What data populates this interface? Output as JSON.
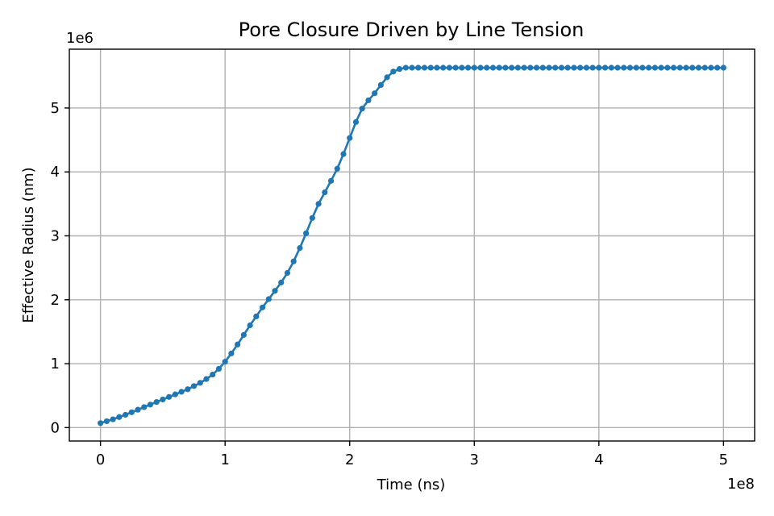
{
  "chart_data": {
    "type": "line",
    "title": "Pore Closure Driven by Line Tension",
    "xlabel": "Time (ns)",
    "ylabel": "Effective Radius (nm)",
    "x_offset_text": "1e8",
    "y_offset_text": "1e6",
    "x_scale_factor": 100000000,
    "y_scale_factor": 1000000,
    "xlim": [
      -25000000,
      525000000
    ],
    "ylim": [
      -210000,
      5920000
    ],
    "xticks": [
      0,
      100000000,
      200000000,
      300000000,
      400000000,
      500000000
    ],
    "xtick_labels": [
      "0",
      "1",
      "2",
      "3",
      "4",
      "5"
    ],
    "yticks": [
      0,
      1000000,
      2000000,
      3000000,
      4000000,
      5000000
    ],
    "ytick_labels": [
      "0",
      "1",
      "2",
      "3",
      "4",
      "5"
    ],
    "grid": true,
    "color": "#1f77b4",
    "series": [
      {
        "x": [
          0,
          5000000,
          10000000,
          15000000,
          20000000,
          25000000,
          30000000,
          35000000,
          40000000,
          45000000,
          50000000,
          55000000,
          60000000,
          65000000,
          70000000,
          75000000,
          80000000,
          85000000,
          90000000,
          95000000,
          100000000,
          105000000,
          110000000,
          115000000,
          120000000,
          125000000,
          130000000,
          135000000,
          140000000,
          145000000,
          150000000,
          155000000,
          160000000,
          165000000,
          170000000,
          175000000,
          180000000,
          185000000,
          190000000,
          195000000,
          200000000,
          205000000,
          210000000,
          215000000,
          220000000,
          225000000,
          230000000,
          235000000,
          240000000,
          245000000,
          250000000,
          255000000,
          260000000,
          265000000,
          270000000,
          275000000,
          280000000,
          285000000,
          290000000,
          295000000,
          300000000,
          305000000,
          310000000,
          315000000,
          320000000,
          325000000,
          330000000,
          335000000,
          340000000,
          345000000,
          350000000,
          355000000,
          360000000,
          365000000,
          370000000,
          375000000,
          380000000,
          385000000,
          390000000,
          395000000,
          400000000,
          405000000,
          410000000,
          415000000,
          420000000,
          425000000,
          430000000,
          435000000,
          440000000,
          445000000,
          450000000,
          455000000,
          460000000,
          465000000,
          470000000,
          475000000,
          480000000,
          485000000,
          490000000,
          495000000,
          500000000
        ],
        "y": [
          70000,
          100000,
          130000,
          165000,
          200000,
          240000,
          280000,
          320000,
          360000,
          400000,
          440000,
          480000,
          520000,
          560000,
          600000,
          650000,
          700000,
          760000,
          830000,
          920000,
          1030000,
          1160000,
          1300000,
          1450000,
          1600000,
          1740000,
          1880000,
          2010000,
          2140000,
          2270000,
          2420000,
          2600000,
          2810000,
          3040000,
          3280000,
          3500000,
          3680000,
          3860000,
          4050000,
          4280000,
          4530000,
          4780000,
          4990000,
          5120000,
          5230000,
          5360000,
          5480000,
          5570000,
          5610000,
          5630000,
          5630000,
          5630000,
          5630000,
          5630000,
          5630000,
          5630000,
          5630000,
          5630000,
          5630000,
          5630000,
          5630000,
          5630000,
          5630000,
          5630000,
          5630000,
          5630000,
          5630000,
          5630000,
          5630000,
          5630000,
          5630000,
          5630000,
          5630000,
          5630000,
          5630000,
          5630000,
          5630000,
          5630000,
          5630000,
          5630000,
          5630000,
          5630000,
          5630000,
          5630000,
          5630000,
          5630000,
          5630000,
          5630000,
          5630000,
          5630000,
          5630000,
          5630000,
          5630000,
          5630000,
          5630000,
          5630000,
          5630000,
          5630000,
          5630000,
          5630000,
          5630000
        ]
      }
    ]
  }
}
